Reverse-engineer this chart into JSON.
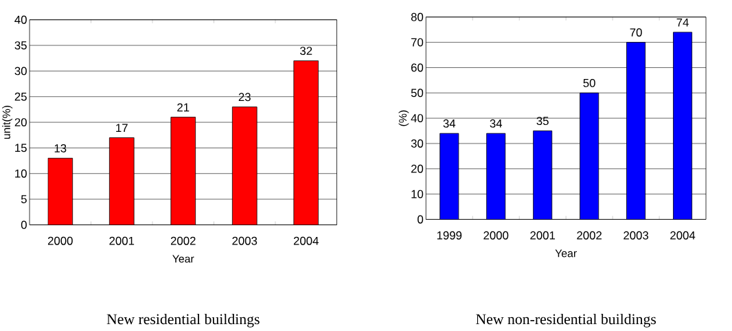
{
  "chart_data": [
    {
      "type": "bar",
      "title": "New residential buildings",
      "xlabel": "Year",
      "ylabel": "unit(%)",
      "categories": [
        "2000",
        "2001",
        "2002",
        "2003",
        "2004"
      ],
      "values": [
        13,
        17,
        21,
        23,
        32
      ],
      "color": "#ff0000",
      "ylim": [
        0,
        40
      ],
      "yticks": [
        0,
        5,
        10,
        15,
        20,
        25,
        30,
        35,
        40
      ],
      "grid": "y",
      "data_labels": true
    },
    {
      "type": "bar",
      "title": "New non-residential buildings",
      "xlabel": "Year",
      "ylabel": "(%)",
      "categories": [
        "1999",
        "2000",
        "2001",
        "2002",
        "2003",
        "2004"
      ],
      "values": [
        34,
        34,
        35,
        50,
        70,
        74
      ],
      "color": "#0000ff",
      "ylim": [
        0,
        80
      ],
      "yticks": [
        0,
        10,
        20,
        30,
        40,
        50,
        60,
        70,
        80
      ],
      "grid": "y",
      "data_labels": true
    }
  ]
}
